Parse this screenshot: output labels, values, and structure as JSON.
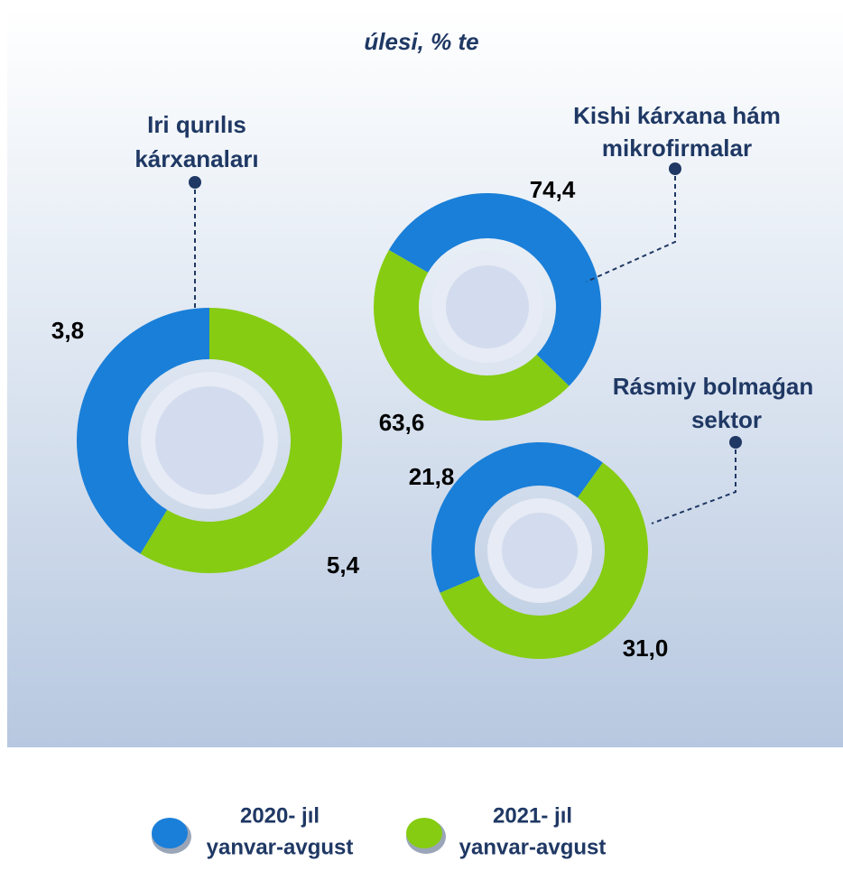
{
  "subtitle": "úlesi,  % te",
  "legend": [
    {
      "lines": [
        "2020- jıl",
        "yanvar-avgust"
      ],
      "color": "#1a7fd8"
    },
    {
      "lines": [
        "2021- jıl",
        "yanvar-avgust"
      ],
      "color": "#86cc12"
    }
  ],
  "chart_data": [
    {
      "type": "donut",
      "title": [
        "Iri qurılıs",
        "kárxanaları"
      ],
      "values": [
        3.8,
        5.4
      ],
      "value_labels": [
        "3,8",
        "5,4"
      ]
    },
    {
      "type": "donut",
      "title": [
        "Kishi kárxana hám",
        "mikrofirmalar"
      ],
      "values": [
        74.4,
        63.6
      ],
      "value_labels": [
        "74,4",
        "63,6"
      ]
    },
    {
      "type": "donut",
      "title": [
        "Rásmiy bolmaǵan",
        "sektor"
      ],
      "values": [
        21.8,
        31.0
      ],
      "value_labels": [
        "21,8",
        "31,0"
      ]
    }
  ]
}
